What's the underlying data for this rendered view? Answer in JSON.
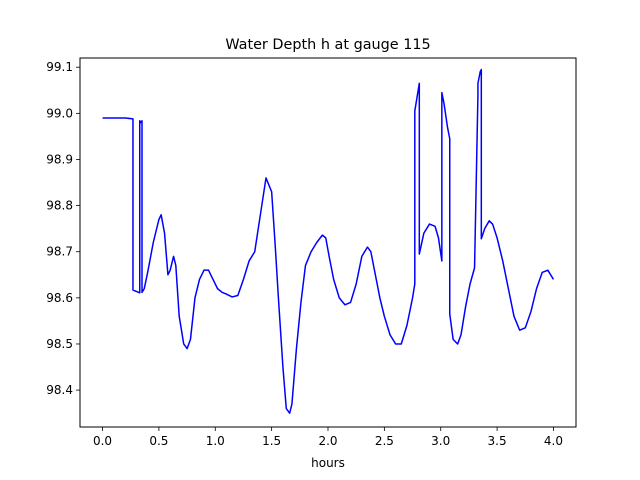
{
  "chart_data": {
    "type": "line",
    "title": "Water Depth h at gauge 115",
    "xlabel": "hours",
    "ylabel": "",
    "xlim": [
      -0.2,
      4.2
    ],
    "ylim": [
      98.32,
      99.12
    ],
    "xticks": [
      0.0,
      0.5,
      1.0,
      1.5,
      2.0,
      2.5,
      3.0,
      3.5,
      4.0
    ],
    "xtick_labels": [
      "0.0",
      "0.5",
      "1.0",
      "1.5",
      "2.0",
      "2.5",
      "3.0",
      "3.5",
      "4.0"
    ],
    "yticks": [
      98.4,
      98.5,
      98.6,
      98.7,
      98.8,
      98.9,
      99.0,
      99.1
    ],
    "ytick_labels": [
      "98.4",
      "98.5",
      "98.6",
      "98.7",
      "98.8",
      "98.9",
      "99.0",
      "99.1"
    ],
    "grid": false,
    "series": [
      {
        "color": "#0000ff",
        "x": [
          0.0,
          0.1,
          0.2,
          0.27,
          0.27,
          0.33,
          0.33,
          0.34,
          0.35,
          0.35,
          0.37,
          0.37,
          0.4,
          0.45,
          0.5,
          0.52,
          0.55,
          0.58,
          0.6,
          0.63,
          0.65,
          0.68,
          0.72,
          0.75,
          0.78,
          0.82,
          0.86,
          0.9,
          0.94,
          0.98,
          1.02,
          1.06,
          1.1,
          1.15,
          1.2,
          1.25,
          1.3,
          1.35,
          1.4,
          1.45,
          1.5,
          1.53,
          1.56,
          1.6,
          1.63,
          1.66,
          1.68,
          1.72,
          1.76,
          1.8,
          1.85,
          1.9,
          1.95,
          1.98,
          2.01,
          2.05,
          2.1,
          2.15,
          2.2,
          2.25,
          2.3,
          2.35,
          2.38,
          2.42,
          2.46,
          2.5,
          2.55,
          2.6,
          2.65,
          2.7,
          2.75,
          2.77,
          2.77,
          2.8,
          2.81,
          2.81,
          2.85,
          2.9,
          2.95,
          2.98,
          3.01,
          3.01,
          3.03,
          3.06,
          3.08,
          3.08,
          3.11,
          3.15,
          3.18,
          3.22,
          3.26,
          3.3,
          3.33,
          3.33,
          3.35,
          3.36,
          3.36,
          3.39,
          3.43,
          3.46,
          3.5,
          3.55,
          3.6,
          3.65,
          3.7,
          3.75,
          3.8,
          3.85,
          3.9,
          3.95,
          4.0
        ],
        "y": [
          98.99,
          98.99,
          98.99,
          98.988,
          98.617,
          98.611,
          98.984,
          98.98,
          98.984,
          98.612,
          98.62,
          98.62,
          98.655,
          98.72,
          98.77,
          98.78,
          98.74,
          98.65,
          98.66,
          98.69,
          98.67,
          98.56,
          98.5,
          98.49,
          98.51,
          98.6,
          98.64,
          98.66,
          98.66,
          98.64,
          98.62,
          98.612,
          98.608,
          98.602,
          98.605,
          98.64,
          98.68,
          98.7,
          98.78,
          98.86,
          98.83,
          98.72,
          98.6,
          98.45,
          98.36,
          98.35,
          98.37,
          98.49,
          98.59,
          98.67,
          98.7,
          98.72,
          98.736,
          98.73,
          98.69,
          98.64,
          98.6,
          98.585,
          98.59,
          98.63,
          98.69,
          98.71,
          98.7,
          98.65,
          98.6,
          98.56,
          98.52,
          98.5,
          98.5,
          98.54,
          98.6,
          98.63,
          99.005,
          99.05,
          99.065,
          98.695,
          98.74,
          98.76,
          98.755,
          98.73,
          98.68,
          99.045,
          99.02,
          98.97,
          98.945,
          98.565,
          98.51,
          98.5,
          98.52,
          98.58,
          98.63,
          98.665,
          99.04,
          99.065,
          99.09,
          99.095,
          98.728,
          98.75,
          98.767,
          98.76,
          98.73,
          98.68,
          98.62,
          98.56,
          98.53,
          98.535,
          98.57,
          98.62,
          98.655,
          98.66,
          98.64
        ]
      }
    ]
  }
}
